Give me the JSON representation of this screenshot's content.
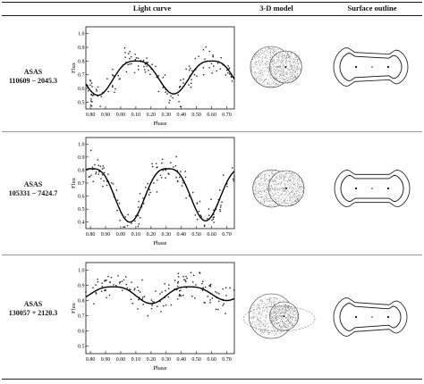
{
  "headers": {
    "light_curve": "Light curve",
    "model_3d": "3-D model",
    "surface": "Surface outline"
  },
  "rows": [
    {
      "label_line1": "ASAS",
      "label_line2": "110609 − 2045.3",
      "chart_data": {
        "type": "scatter",
        "xlabel": "Phase",
        "ylabel": "Flux",
        "xticks": [
          "0.80",
          "0.90",
          "0.00",
          "0.10",
          "0.20",
          "0.30",
          "0.40",
          "0.50",
          "0.60",
          "0.70"
        ],
        "yticks": [
          "0.5",
          "0.6",
          "0.7",
          "0.8",
          "0.9",
          "1.0"
        ],
        "ylim": [
          0.45,
          1.05
        ],
        "curve": {
          "min1_phase": 0.85,
          "min1_flux": 0.55,
          "min2_phase": 0.35,
          "min2_flux": 0.56,
          "max_flux": 0.8
        }
      }
    },
    {
      "label_line1": "ASAS",
      "label_line2": "105331 − 7424.7",
      "chart_data": {
        "type": "scatter",
        "xlabel": "Phase",
        "ylabel": "Flux",
        "xticks": [
          "0.80",
          "0.90",
          "0.00",
          "0.10",
          "0.20",
          "0.30",
          "0.40",
          "0.50",
          "0.60",
          "0.70"
        ],
        "yticks": [
          "0.4",
          "0.5",
          "0.6",
          "0.7",
          "0.8",
          "0.9",
          "1.0"
        ],
        "ylim": [
          0.35,
          1.05
        ],
        "curve": {
          "min1_phase": 0.06,
          "min1_flux": 0.4,
          "min2_phase": 0.56,
          "min2_flux": 0.41,
          "max_flux": 0.81
        }
      }
    },
    {
      "label_line1": "ASAS",
      "label_line2": "130057 + 2120.3",
      "chart_data": {
        "type": "scatter",
        "xlabel": "Phase",
        "ylabel": "Flux",
        "xticks": [
          "0.80",
          "0.90",
          "0.00",
          "0.10",
          "0.20",
          "0.30",
          "0.40",
          "0.50",
          "0.60",
          "0.70"
        ],
        "yticks": [
          "0.5",
          "0.6",
          "0.7",
          "0.8",
          "0.9",
          "1.0"
        ],
        "ylim": [
          0.45,
          1.05
        ],
        "curve": {
          "min1_phase": 0.2,
          "min1_flux": 0.78,
          "min2_phase": 0.7,
          "min2_flux": 0.8,
          "max_flux": 0.89
        }
      }
    }
  ]
}
